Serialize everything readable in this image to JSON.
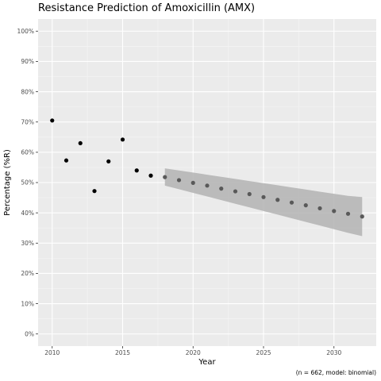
{
  "chart_data": {
    "type": "scatter",
    "title": "Resistance Prediction of Amoxicillin (AMX)",
    "xlabel": "Year",
    "ylabel": "Percentage (%R)",
    "caption": "(n = 662, model: binomial)",
    "xlim": [
      2009,
      2033
    ],
    "ylim": [
      -0.04,
      1.04
    ],
    "x_ticks": [
      2010,
      2015,
      2020,
      2025,
      2030
    ],
    "y_ticks": [
      0,
      0.1,
      0.2,
      0.3,
      0.4,
      0.5,
      0.6,
      0.7,
      0.8,
      0.9,
      1.0
    ],
    "y_tick_labels": [
      "0%",
      "10%",
      "20%",
      "30%",
      "40%",
      "50%",
      "60%",
      "70%",
      "80%",
      "90%",
      "100%"
    ],
    "grid": true,
    "observed": {
      "color": "#000000",
      "x": [
        2010,
        2011,
        2012,
        2013,
        2014,
        2015,
        2016,
        2017
      ],
      "y": [
        0.705,
        0.573,
        0.63,
        0.472,
        0.57,
        0.642,
        0.54,
        0.523
      ]
    },
    "predicted": {
      "color": "#595959",
      "x": [
        2018,
        2019,
        2020,
        2021,
        2022,
        2023,
        2024,
        2025,
        2026,
        2027,
        2028,
        2029,
        2030,
        2031,
        2032
      ],
      "y": [
        0.518,
        0.508,
        0.499,
        0.49,
        0.48,
        0.471,
        0.462,
        0.452,
        0.443,
        0.434,
        0.425,
        0.415,
        0.406,
        0.397,
        0.388
      ],
      "lower": [
        0.49,
        0.478,
        0.466,
        0.454,
        0.442,
        0.43,
        0.418,
        0.406,
        0.394,
        0.382,
        0.37,
        0.358,
        0.346,
        0.334,
        0.323
      ],
      "upper": [
        0.547,
        0.54,
        0.533,
        0.526,
        0.519,
        0.512,
        0.505,
        0.498,
        0.491,
        0.484,
        0.477,
        0.47,
        0.463,
        0.456,
        0.452
      ]
    },
    "colors": {
      "panel": "#ebebeb",
      "grid_major": "#ffffff",
      "ribbon": "#b3b3b3"
    }
  }
}
